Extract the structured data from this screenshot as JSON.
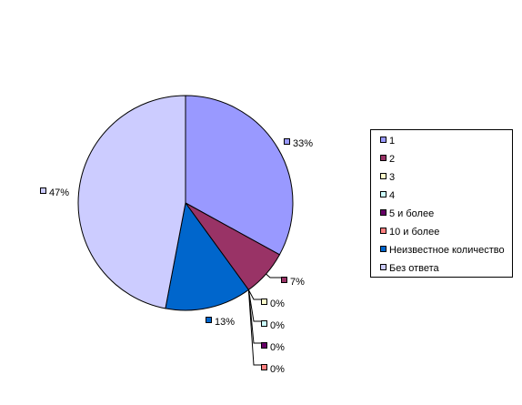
{
  "chart_data": {
    "type": "pie",
    "categories": [
      "1",
      "2",
      "3",
      "4",
      "5 и более",
      "10 и более",
      "Неизвестное количество",
      "Без ответа"
    ],
    "values": [
      33,
      7,
      0,
      0,
      0,
      0,
      13,
      47
    ],
    "data_labels": [
      "33%",
      "7%",
      "0%",
      "0%",
      "0%",
      "0%",
      "13%",
      "47%"
    ],
    "colors": [
      "#9999FF",
      "#993366",
      "#FFFFCC",
      "#CCFFFF",
      "#660066",
      "#FF8080",
      "#0066CC",
      "#CCCCFF"
    ],
    "legend_position": "right",
    "title": ""
  }
}
